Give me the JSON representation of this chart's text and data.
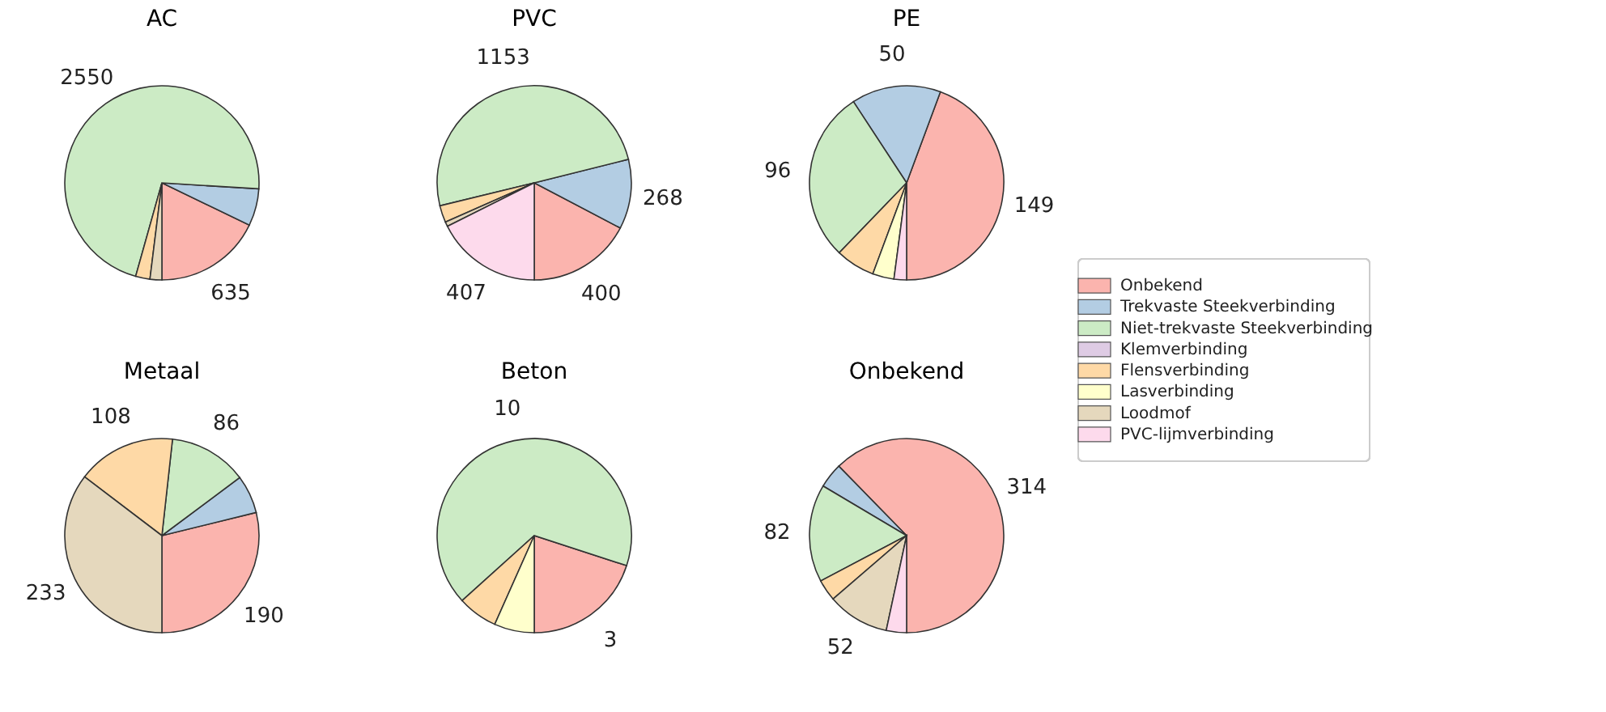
{
  "chart_data": [
    {
      "type": "pie",
      "title": "AC",
      "categories": [
        "Onbekend",
        "Trekvaste Steekverbinding",
        "Niet-trekvaste Steekverbinding",
        "Klemverbinding",
        "Flensverbinding",
        "Lasverbinding",
        "Loodmof",
        "PVC-lijmverbinding"
      ],
      "values": [
        635,
        220,
        2550,
        null,
        85,
        0,
        70,
        0
      ],
      "colors": [
        "#fbb4ae",
        "#b3cde3",
        "#ccebc5",
        "#decbe4",
        "#fed9a6",
        "#ffffcc",
        "#e5d8bd",
        "#fddaec"
      ],
      "value_labels": [
        "635",
        null,
        "2550",
        null,
        null,
        null,
        null,
        null
      ],
      "legend": "right"
    },
    {
      "type": "pie",
      "title": "PVC",
      "categories": [
        null,
        null,
        null,
        null,
        null,
        null,
        null,
        null
      ],
      "values": [
        400,
        268,
        1153,
        null,
        65,
        null,
        18,
        407
      ],
      "colors": [
        "#fbb4ae",
        "#b3cde3",
        "#ccebc5",
        "#decbe4",
        "#fed9a6",
        "#ffffcc",
        "#e5d8bd",
        "#fddaec"
      ],
      "value_labels": [
        "400",
        "268",
        "1153",
        null,
        null,
        null,
        null,
        "407"
      ]
    },
    {
      "type": "pie",
      "title": "PE",
      "categories": [
        null,
        null,
        null,
        null,
        null,
        null,
        null,
        null
      ],
      "values": [
        149,
        50,
        96,
        null,
        22,
        12,
        0,
        7
      ],
      "colors": [
        "#fbb4ae",
        "#b3cde3",
        "#ccebc5",
        "#decbe4",
        "#fed9a6",
        "#ffffcc",
        "#e5d8bd",
        "#fddaec"
      ],
      "value_labels": [
        "149",
        "50",
        "96",
        null,
        null,
        null,
        null,
        null
      ]
    },
    {
      "type": "pie",
      "title": "Metaal",
      "categories": [
        null,
        null,
        null,
        null,
        null,
        null,
        null,
        null
      ],
      "values": [
        190,
        42,
        86,
        0,
        108,
        0,
        233,
        0
      ],
      "colors": [
        "#fbb4ae",
        "#b3cde3",
        "#ccebc5",
        "#decbe4",
        "#fed9a6",
        "#ffffcc",
        "#e5d8bd",
        "#fddaec"
      ],
      "value_labels": [
        "190",
        null,
        "86",
        null,
        "108",
        null,
        "233",
        null
      ]
    },
    {
      "type": "pie",
      "title": "Beton",
      "categories": [
        null,
        null,
        null,
        null,
        null,
        null,
        null,
        null
      ],
      "values": [
        3,
        0,
        10,
        0,
        1,
        1,
        0,
        0
      ],
      "colors": [
        "#fbb4ae",
        "#b3cde3",
        "#ccebc5",
        "#decbe4",
        "#fed9a6",
        "#ffffcc",
        "#e5d8bd",
        "#fddaec"
      ],
      "value_labels": [
        "3",
        null,
        "10",
        null,
        null,
        null,
        null,
        null
      ]
    },
    {
      "type": "pie",
      "title": "Onbekend",
      "categories": [
        null,
        null,
        null,
        null,
        null,
        null,
        null,
        null
      ],
      "values": [
        314,
        21,
        82,
        null,
        18,
        0,
        52,
        17
      ],
      "colors": [
        "#fbb4ae",
        "#b3cde3",
        "#ccebc5",
        "#decbe4",
        "#fed9a6",
        "#ffffcc",
        "#e5d8bd",
        "#fddaec"
      ],
      "value_labels": [
        "314",
        null,
        "82",
        null,
        null,
        null,
        "52",
        null
      ]
    }
  ]
}
